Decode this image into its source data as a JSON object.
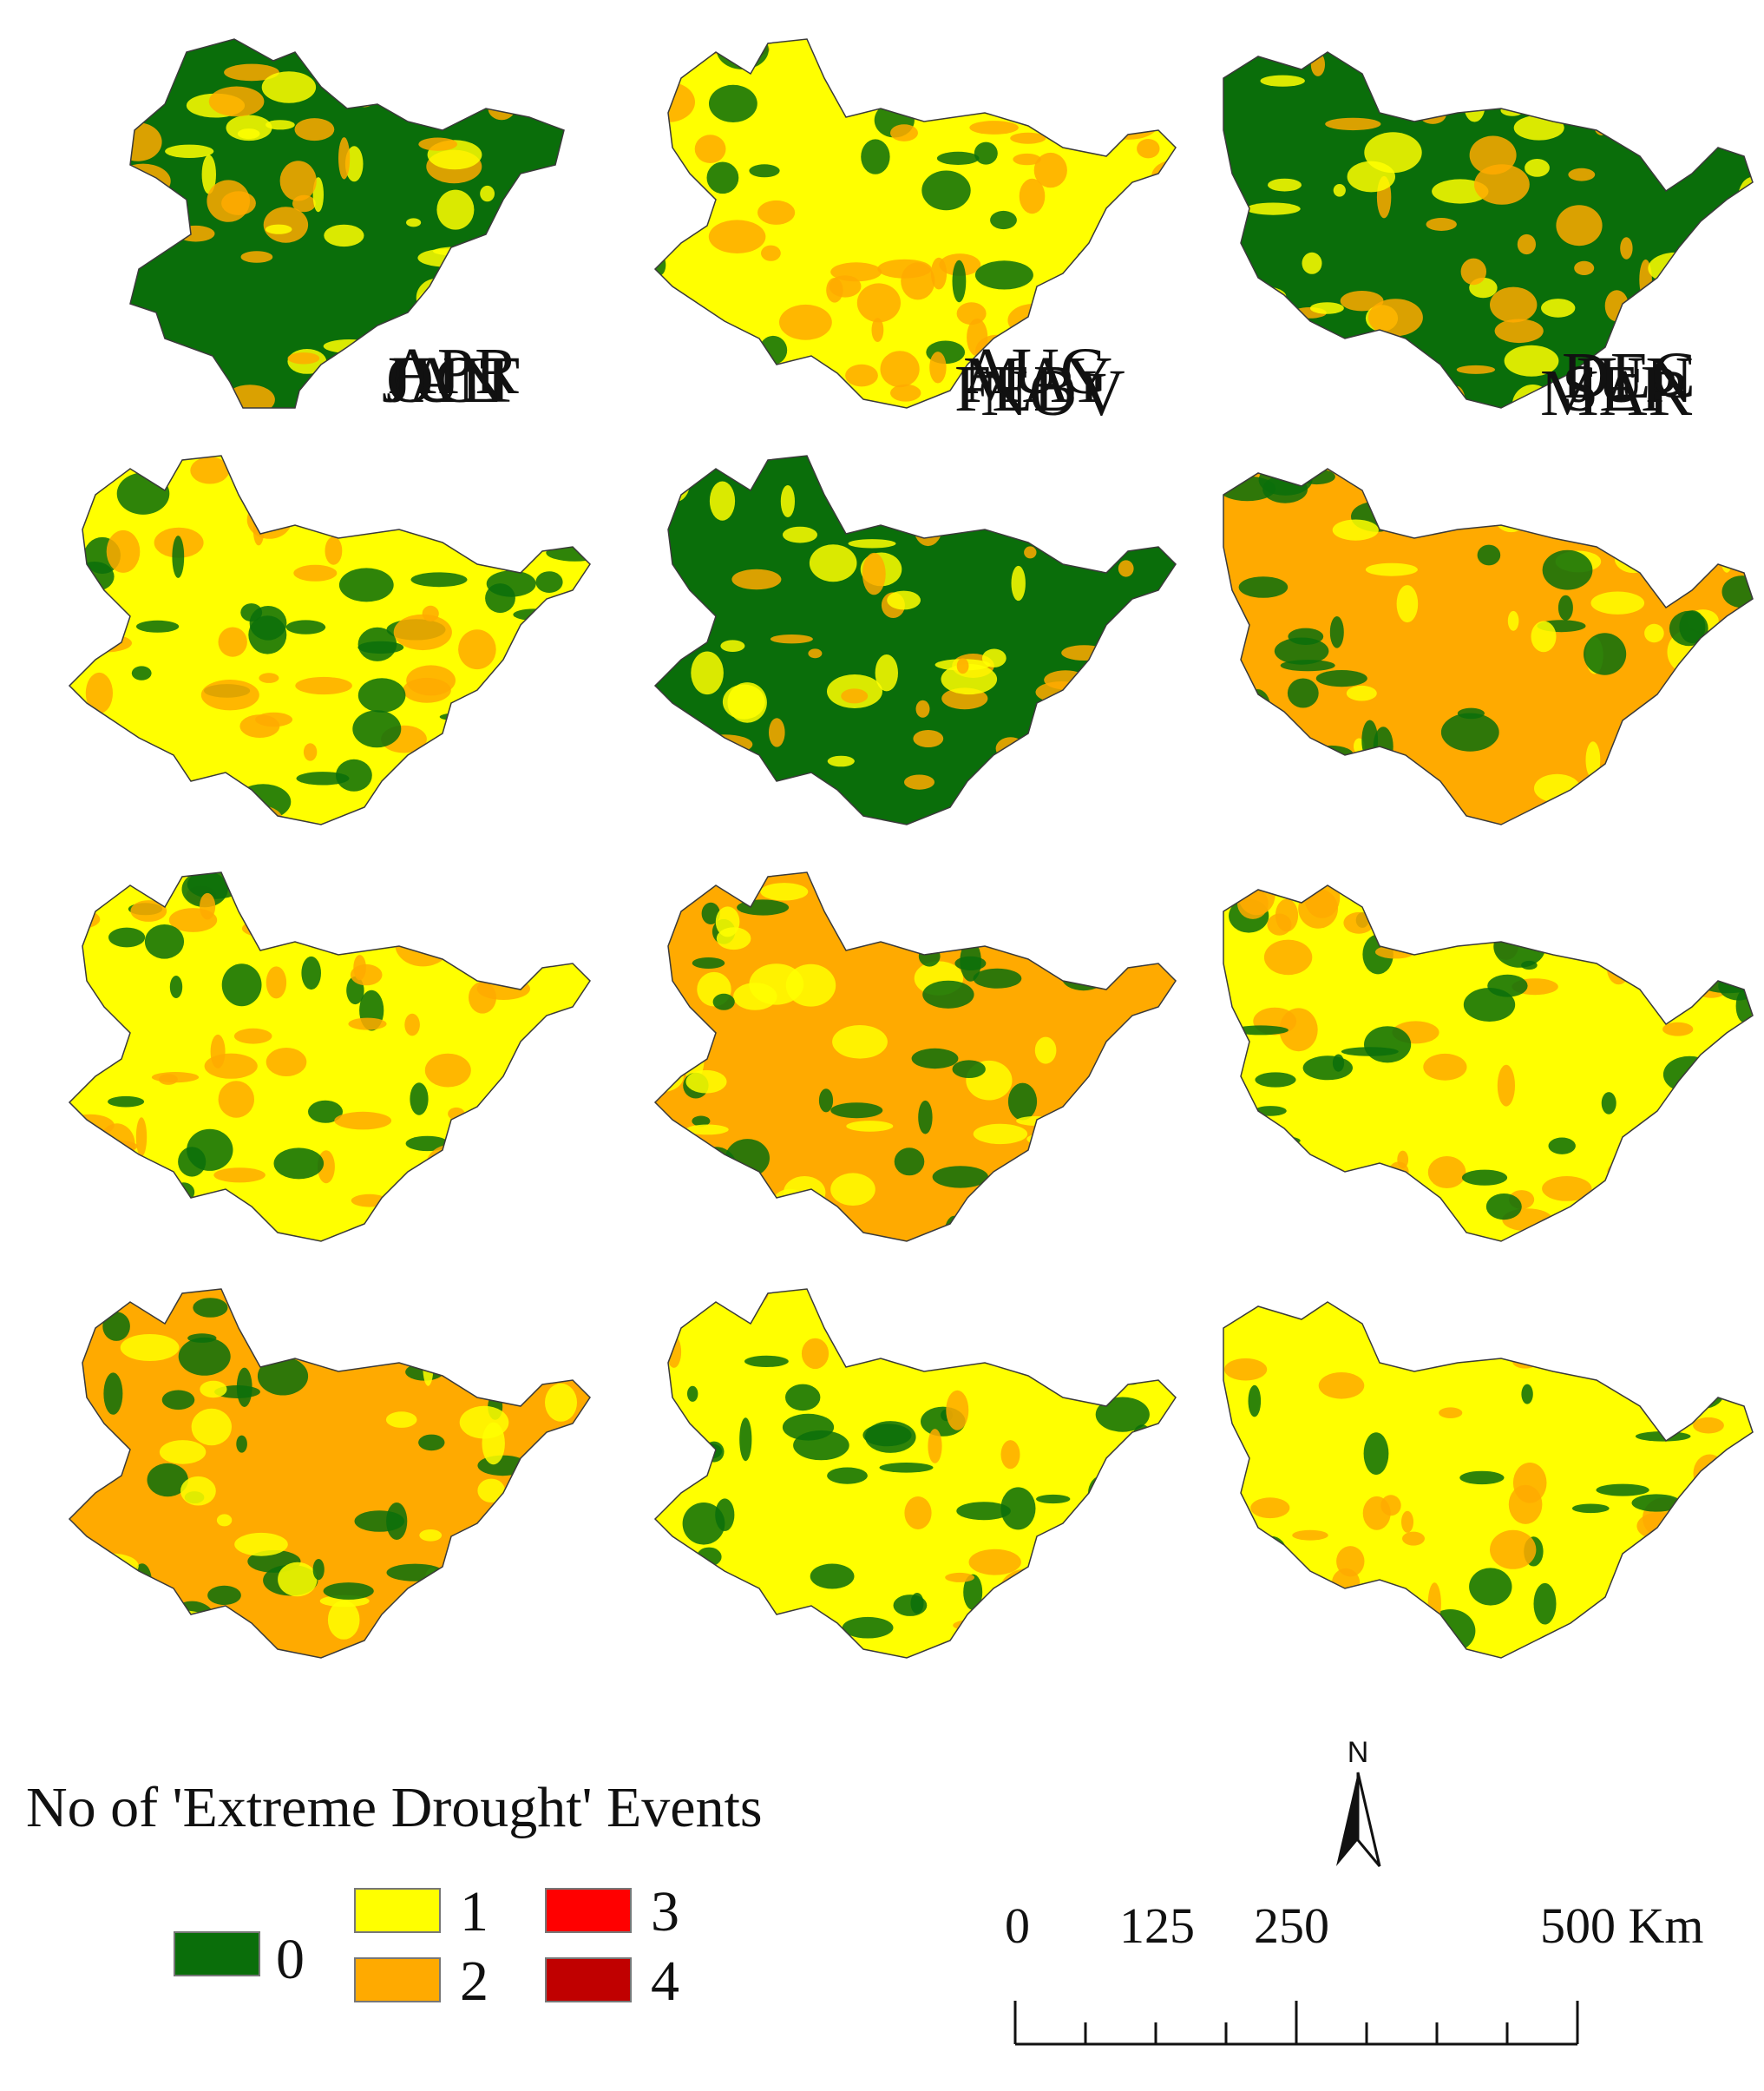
{
  "figure": {
    "panels": [
      {
        "month": "JAN",
        "dominant": "0",
        "shape": "a"
      },
      {
        "month": "FEB",
        "dominant": "1",
        "shape": "b"
      },
      {
        "month": "MAR",
        "dominant": "0",
        "shape": "c"
      },
      {
        "month": "APR",
        "dominant": "1",
        "shape": "b"
      },
      {
        "month": "MAY",
        "dominant": "0",
        "shape": "b"
      },
      {
        "month": "JUN",
        "dominant": "2",
        "shape": "c"
      },
      {
        "month": "JUL",
        "dominant": "1",
        "shape": "b"
      },
      {
        "month": "AUG",
        "dominant": "2",
        "shape": "b"
      },
      {
        "month": "SEP",
        "dominant": "1",
        "shape": "c"
      },
      {
        "month": "OCT",
        "dominant": "2",
        "shape": "b"
      },
      {
        "month": "NOV",
        "dominant": "1",
        "shape": "b"
      },
      {
        "month": "DEC",
        "dominant": "1",
        "shape": "c"
      }
    ]
  },
  "legend": {
    "title": "No of 'Extreme Drought' Events",
    "classes": [
      {
        "label": "0",
        "color": "#0a6e0a"
      },
      {
        "label": "1",
        "color": "#ffff00"
      },
      {
        "label": "2",
        "color": "#ffaa00"
      },
      {
        "label": "3",
        "color": "#ff0000"
      },
      {
        "label": "4",
        "color": "#c00000"
      }
    ]
  },
  "north_arrow": {
    "label": "N",
    "icon": "north-arrow-icon"
  },
  "scale_bar": {
    "labels": [
      "0",
      "125",
      "250",
      "500 Km"
    ]
  }
}
